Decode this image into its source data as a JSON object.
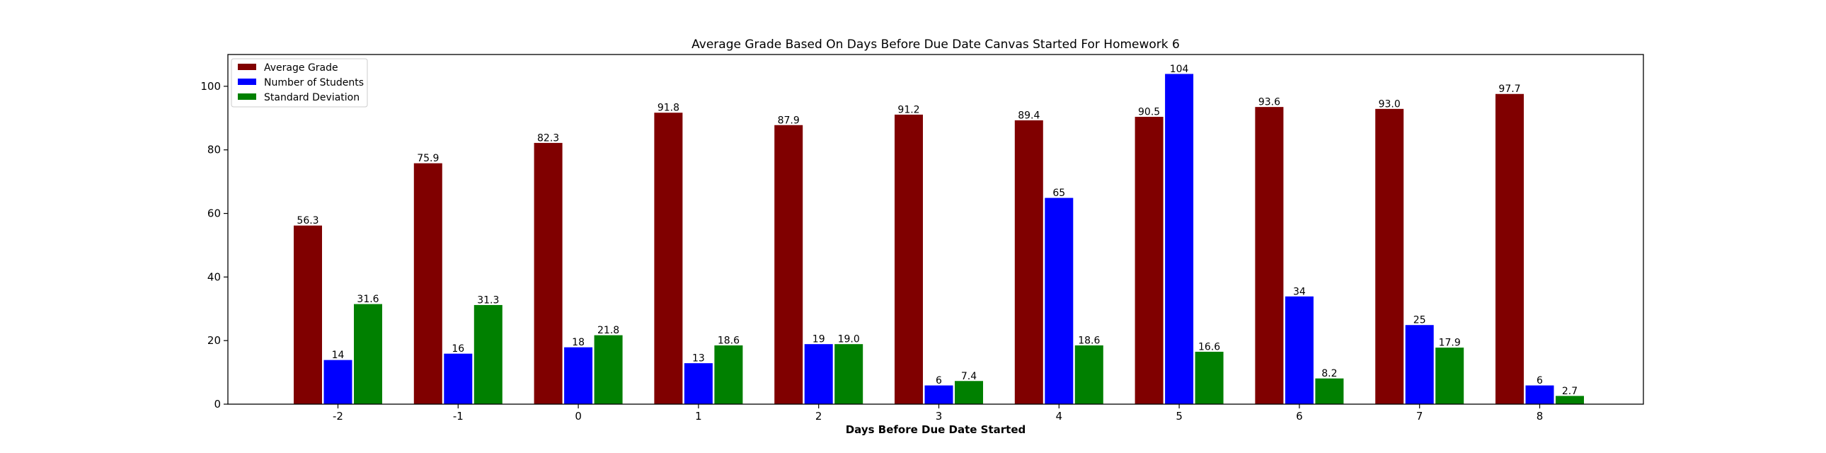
{
  "chart_data": {
    "type": "bar",
    "title": "Average Grade Based On Days Before Due Date Canvas Started For Homework 6",
    "xlabel": "Days Before Due Date Started",
    "ylabel": "",
    "ylim": [
      0,
      110
    ],
    "yticks": [
      0,
      20,
      40,
      60,
      80,
      100
    ],
    "grid": false,
    "legend_position": "top-left",
    "categories": [
      "-2",
      "-1",
      "0",
      "1",
      "2",
      "3",
      "4",
      "5",
      "6",
      "7",
      "8"
    ],
    "series": [
      {
        "name": "Average Grade",
        "color": "#800000",
        "values": [
          56.3,
          75.9,
          82.3,
          91.8,
          87.9,
          91.2,
          89.4,
          90.5,
          93.6,
          93.0,
          97.7
        ],
        "labels": [
          "56.3",
          "75.9",
          "82.3",
          "91.8",
          "87.9",
          "91.2",
          "89.4",
          "90.5",
          "93.6",
          "93.0",
          "97.7"
        ]
      },
      {
        "name": "Number of Students",
        "color": "#0000ff",
        "values": [
          14,
          16,
          18,
          13,
          19,
          6,
          65,
          104,
          34,
          25,
          6
        ],
        "labels": [
          "14",
          "16",
          "18",
          "13",
          "19",
          "6",
          "65",
          "104",
          "34",
          "25",
          "6"
        ]
      },
      {
        "name": "Standard Deviation",
        "color": "#008000",
        "values": [
          31.6,
          31.3,
          21.8,
          18.6,
          19.0,
          7.4,
          18.6,
          16.6,
          8.2,
          17.9,
          2.7
        ],
        "labels": [
          "31.6",
          "31.3",
          "21.8",
          "18.6",
          "19.0",
          "7.4",
          "18.6",
          "16.6",
          "8.2",
          "17.9",
          "2.7"
        ]
      }
    ]
  }
}
